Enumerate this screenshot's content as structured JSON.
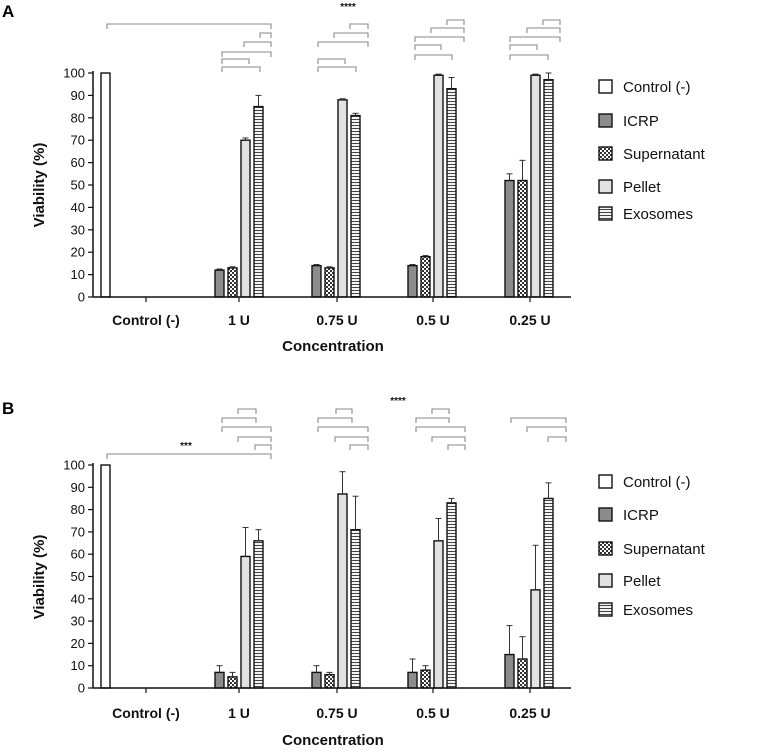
{
  "colors": {
    "control": "#ffffff",
    "icrp": "#8c8c8c",
    "supernatant": "#ffffff",
    "pellet": "#e2e2e2",
    "exosomes": "#f2f2f2",
    "bracket": "#8a8a8a",
    "axis": "#111111"
  },
  "chart_data": [
    {
      "type": "bar",
      "panel": "A",
      "ylabel": "Viability (%)",
      "xlabel": "Concentration",
      "ylim": [
        0,
        100
      ],
      "yticks": [
        "0",
        "10",
        "20",
        "30",
        "40",
        "50",
        "60",
        "70",
        "80",
        "90",
        "100"
      ],
      "categories": [
        "Control (-)",
        "1 U",
        "0.75 U",
        "0.5 U",
        "0.25 U"
      ],
      "series": [
        {
          "name": "Control (-)",
          "pattern": "control",
          "values": [
            100,
            null,
            null,
            null,
            null
          ],
          "errors": [
            0,
            null,
            null,
            null,
            null
          ]
        },
        {
          "name": "ICRP",
          "pattern": "icrp",
          "values": [
            null,
            12,
            14,
            14,
            52
          ],
          "errors": [
            null,
            0.5,
            0.5,
            0.5,
            3
          ]
        },
        {
          "name": "Supernatant",
          "pattern": "supernatant",
          "values": [
            null,
            13,
            13,
            18,
            52
          ],
          "errors": [
            null,
            0.5,
            0.5,
            0.5,
            9
          ]
        },
        {
          "name": "Pellet",
          "pattern": "pellet",
          "values": [
            null,
            70,
            88,
            99,
            99
          ],
          "errors": [
            null,
            1,
            0.5,
            0.5,
            0.5
          ]
        },
        {
          "name": "Exosomes",
          "pattern": "exosomes",
          "values": [
            null,
            85,
            81,
            93,
            97
          ],
          "errors": [
            null,
            5,
            1,
            5,
            3
          ]
        }
      ],
      "annotations": [
        {
          "text": "****"
        }
      ]
    },
    {
      "type": "bar",
      "panel": "B",
      "ylabel": "Viability (%)",
      "xlabel": "Concentration",
      "ylim": [
        0,
        100
      ],
      "yticks": [
        "0",
        "10",
        "20",
        "30",
        "40",
        "50",
        "60",
        "70",
        "80",
        "90",
        "100"
      ],
      "categories": [
        "Control (-)",
        "1 U",
        "0.75 U",
        "0.5 U",
        "0.25 U"
      ],
      "series": [
        {
          "name": "Control (-)",
          "pattern": "control",
          "values": [
            100,
            null,
            null,
            null,
            null
          ],
          "errors": [
            0,
            null,
            null,
            null,
            null
          ]
        },
        {
          "name": "ICRP",
          "pattern": "icrp",
          "values": [
            null,
            7,
            7,
            7,
            15
          ],
          "errors": [
            null,
            3,
            3,
            6,
            13
          ]
        },
        {
          "name": "Supernatant",
          "pattern": "supernatant",
          "values": [
            null,
            5,
            6,
            8,
            13
          ],
          "errors": [
            null,
            2,
            1,
            2,
            10
          ]
        },
        {
          "name": "Pellet",
          "pattern": "pellet",
          "values": [
            null,
            59,
            87,
            66,
            44
          ],
          "errors": [
            null,
            13,
            10,
            10,
            20
          ]
        },
        {
          "name": "Exosomes",
          "pattern": "exosomes",
          "values": [
            null,
            66,
            71,
            83,
            85
          ],
          "errors": [
            null,
            5,
            15,
            2,
            7
          ]
        }
      ],
      "annotations": [
        {
          "text": "****"
        },
        {
          "text": "***"
        }
      ]
    }
  ]
}
